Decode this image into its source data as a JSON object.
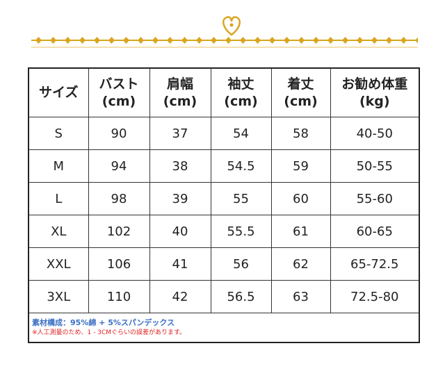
{
  "table": {
    "header": [
      [
        "サイズ"
      ],
      [
        "バスト",
        "(cm)"
      ],
      [
        "肩幅",
        "(cm)"
      ],
      [
        "袖丈",
        "(cm)"
      ],
      [
        "着丈",
        "(cm)"
      ],
      [
        "お勧め体重",
        "(kg)"
      ]
    ],
    "rows": [
      [
        "S",
        "90",
        "37",
        "54",
        "58",
        "40-50"
      ],
      [
        "M",
        "94",
        "38",
        "54.5",
        "59",
        "50-55"
      ],
      [
        "L",
        "98",
        "39",
        "55",
        "60",
        "55-60"
      ],
      [
        "XL",
        "102",
        "40",
        "55.5",
        "61",
        "60-65"
      ],
      [
        "XXL",
        "106",
        "41",
        "56",
        "62",
        "65-72.5"
      ],
      [
        "3XL",
        "110",
        "42",
        "56.5",
        "63",
        "72.5-80"
      ]
    ],
    "notes": [
      "素材構成：95%綿 + 5%スパンデックス",
      "※人工測量のため、1 - 3CMぐらいの誤差があります。"
    ]
  }
}
